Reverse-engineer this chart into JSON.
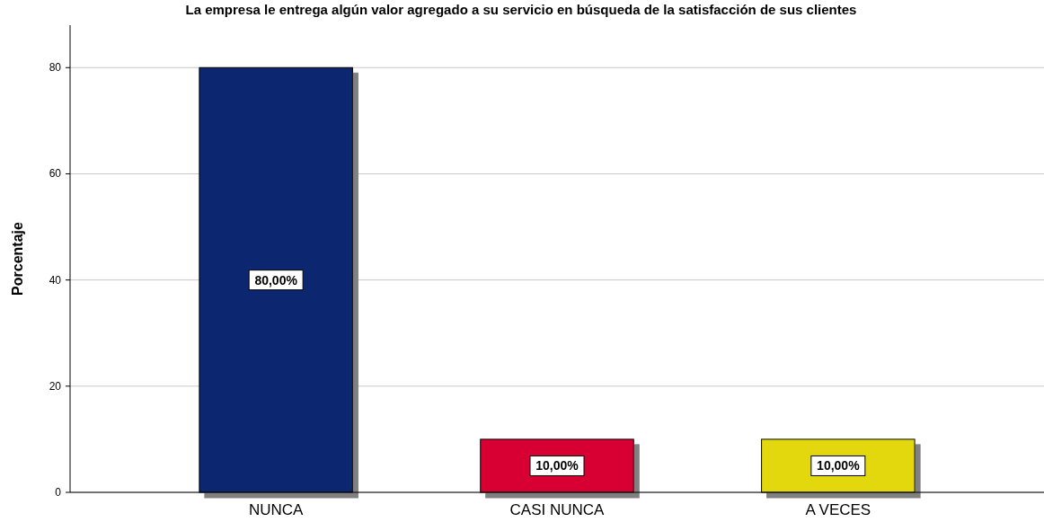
{
  "chart_data": {
    "type": "bar",
    "title": "La empresa le entrega algún valor agregado a su servicio en búsqueda de la satisfacción de sus clientes",
    "ylabel": "Porcentaje",
    "categories": [
      "NUNCA",
      "CASI NUNCA",
      "A VECES"
    ],
    "values": [
      80,
      10,
      10
    ],
    "colors": [
      "#0b2570",
      "#d80032",
      "#e3d80e"
    ],
    "value_labels": [
      "80,00%",
      "10,00%",
      "10,00%"
    ],
    "ylim": [
      0,
      88
    ],
    "yticks": [
      0,
      20,
      40,
      60,
      80
    ],
    "grid": "y"
  }
}
